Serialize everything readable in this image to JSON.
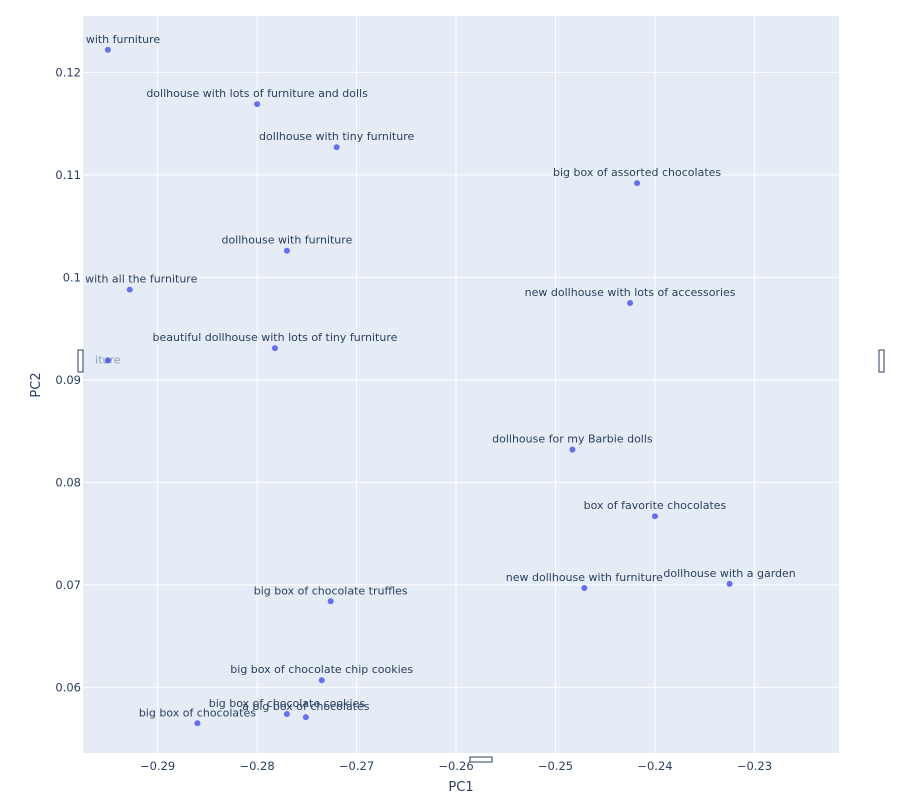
{
  "colors": {
    "plot_bg": "#e5ecf6",
    "grid": "#ffffff",
    "marker": "#636efa",
    "text": "#2a3f5f"
  },
  "chart_data": {
    "type": "scatter",
    "title": "",
    "xlabel": "PC1",
    "ylabel": "PC2",
    "xlim": [
      -0.2975,
      -0.2215
    ],
    "ylim": [
      0.0536,
      0.1255
    ],
    "grid": true,
    "x_ticks": [
      -0.29,
      -0.28,
      -0.27,
      -0.26,
      -0.25,
      -0.24,
      -0.23
    ],
    "x_tick_labels": [
      "−0.29",
      "−0.28",
      "−0.27",
      "−0.26",
      "−0.25",
      "−0.24",
      "−0.23"
    ],
    "y_ticks": [
      0.06,
      0.07,
      0.08,
      0.09,
      0.1,
      0.11,
      0.12
    ],
    "y_tick_labels": [
      "0.06",
      "0.07",
      "0.08",
      "0.09",
      "0.1",
      "0.11",
      "0.12"
    ],
    "points": [
      {
        "x": -0.295,
        "y": 0.1222,
        "label": "filled with furniture"
      },
      {
        "x": -0.28,
        "y": 0.1169,
        "label": "dollhouse with lots of furniture and dolls"
      },
      {
        "x": -0.272,
        "y": 0.1127,
        "label": "dollhouse with tiny furniture"
      },
      {
        "x": -0.2418,
        "y": 0.1092,
        "label": "big box of assorted chocolates"
      },
      {
        "x": -0.277,
        "y": 0.1026,
        "label": "dollhouse with furniture"
      },
      {
        "x": -0.2928,
        "y": 0.0988,
        "label": "use with all the furniture"
      },
      {
        "x": -0.2425,
        "y": 0.0975,
        "label": "new dollhouse with lots of accessories"
      },
      {
        "x": -0.2782,
        "y": 0.0931,
        "label": "beautiful dollhouse with lots of tiny furniture"
      },
      {
        "x": -0.295,
        "y": 0.0919,
        "label": "iture"
      },
      {
        "x": -0.2483,
        "y": 0.0832,
        "label": "dollhouse for my Barbie dolls"
      },
      {
        "x": -0.24,
        "y": 0.0767,
        "label": "box of favorite chocolates"
      },
      {
        "x": -0.2325,
        "y": 0.0701,
        "label": "dollhouse with a garden"
      },
      {
        "x": -0.2471,
        "y": 0.0697,
        "label": "new dollhouse with furniture"
      },
      {
        "x": -0.2726,
        "y": 0.0684,
        "label": "big box of chocolate truffles"
      },
      {
        "x": -0.2735,
        "y": 0.0607,
        "label": "big box of chocolate chip cookies"
      },
      {
        "x": -0.277,
        "y": 0.0574,
        "label": "big box of chocolate cookies"
      },
      {
        "x": -0.2751,
        "y": 0.0571,
        "label": "a big box of chocolates"
      },
      {
        "x": -0.286,
        "y": 0.0565,
        "label": "big box of chocolates"
      }
    ]
  }
}
